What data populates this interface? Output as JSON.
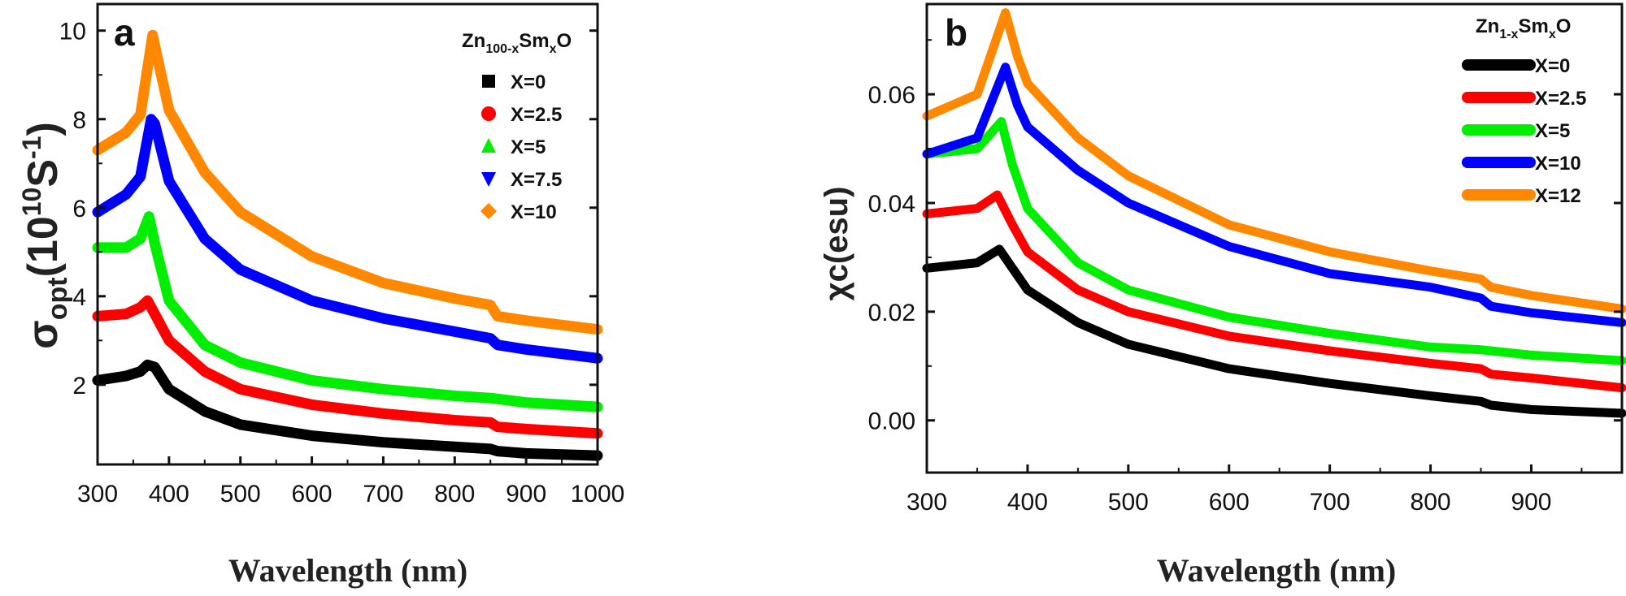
{
  "chart_data": [
    {
      "type": "line",
      "panel_label": "a",
      "xlabel": "Wavelength (nm)",
      "ylabel": {
        "base": "σ",
        "sub": "opt",
        "rest": "(10",
        "sup": "10",
        "unit": "S",
        "sup2": "-1",
        "close": ")"
      },
      "xlim": [
        300,
        1000
      ],
      "ylim": [
        0.2,
        10.6
      ],
      "xticks": [
        300,
        400,
        500,
        600,
        700,
        800,
        900,
        1000
      ],
      "yticks": [
        2,
        4,
        6,
        8,
        10
      ],
      "grid": false,
      "legend_position": "top-right",
      "legend_title": {
        "a": "Zn",
        "b": "100-x",
        "c": "Sm",
        "d": "x",
        "e": "O"
      },
      "series": [
        {
          "name": "X=0",
          "color": "#000000",
          "marker": "square",
          "x": [
            300,
            340,
            360,
            370,
            380,
            400,
            450,
            500,
            600,
            700,
            800,
            850,
            860,
            900,
            1000
          ],
          "y": [
            2.1,
            2.2,
            2.3,
            2.45,
            2.4,
            1.9,
            1.4,
            1.1,
            0.85,
            0.7,
            0.6,
            0.55,
            0.5,
            0.45,
            0.4
          ]
        },
        {
          "name": "X=2.5",
          "color": "#ff0000",
          "marker": "circle",
          "x": [
            300,
            340,
            360,
            370,
            380,
            400,
            450,
            500,
            600,
            700,
            800,
            850,
            860,
            900,
            1000
          ],
          "y": [
            3.55,
            3.6,
            3.75,
            3.9,
            3.6,
            3.0,
            2.3,
            1.9,
            1.55,
            1.35,
            1.2,
            1.15,
            1.05,
            1.0,
            0.9
          ]
        },
        {
          "name": "X=5",
          "color": "#00ee00",
          "marker": "triangle-up",
          "x": [
            300,
            340,
            360,
            372,
            380,
            400,
            450,
            500,
            600,
            700,
            800,
            850,
            900,
            1000
          ],
          "y": [
            5.1,
            5.1,
            5.3,
            5.8,
            5.2,
            3.9,
            2.9,
            2.5,
            2.1,
            1.9,
            1.75,
            1.7,
            1.6,
            1.5
          ]
        },
        {
          "name": "X=7.5",
          "color": "#0000ff",
          "marker": "triangle-down",
          "x": [
            300,
            340,
            360,
            375,
            380,
            400,
            450,
            500,
            600,
            700,
            800,
            850,
            860,
            900,
            1000
          ],
          "y": [
            5.9,
            6.3,
            6.7,
            8.0,
            7.9,
            6.6,
            5.3,
            4.6,
            3.9,
            3.5,
            3.2,
            3.05,
            2.9,
            2.8,
            2.6
          ]
        },
        {
          "name": "X=10",
          "color": "#ff8800",
          "marker": "diamond",
          "x": [
            300,
            340,
            360,
            377,
            385,
            400,
            450,
            500,
            600,
            700,
            800,
            850,
            860,
            900,
            1000
          ],
          "y": [
            7.3,
            7.7,
            8.1,
            9.9,
            9.3,
            8.2,
            6.8,
            5.9,
            4.9,
            4.3,
            3.95,
            3.8,
            3.55,
            3.45,
            3.25
          ]
        }
      ]
    },
    {
      "type": "line",
      "panel_label": "b",
      "xlabel": "Wavelength (nm)",
      "ylabel": {
        "text": "χc(esu)"
      },
      "xlim": [
        300,
        990
      ],
      "ylim": [
        -0.0096,
        0.0766
      ],
      "xticks": [
        300,
        400,
        500,
        600,
        700,
        800,
        900
      ],
      "yticks": [
        "0.00",
        "0.02",
        "0.04",
        "0.06"
      ],
      "grid": false,
      "legend_position": "top-right",
      "legend_title": {
        "a": "Zn",
        "b": "1-x",
        "c": "Sm",
        "d": "x",
        "e": "O"
      },
      "series": [
        {
          "name": "X=0",
          "color": "#000000",
          "x": [
            300,
            350,
            372,
            385,
            400,
            450,
            500,
            600,
            700,
            800,
            850,
            860,
            900,
            990
          ],
          "y": [
            0.028,
            0.029,
            0.0315,
            0.028,
            0.024,
            0.018,
            0.014,
            0.0095,
            0.0068,
            0.0045,
            0.0035,
            0.0028,
            0.002,
            0.0013
          ]
        },
        {
          "name": "X=2.5",
          "color": "#ff0000",
          "x": [
            300,
            350,
            370,
            385,
            400,
            450,
            500,
            600,
            700,
            800,
            850,
            860,
            900,
            990
          ],
          "y": [
            0.038,
            0.039,
            0.0415,
            0.036,
            0.031,
            0.024,
            0.02,
            0.0155,
            0.0128,
            0.0105,
            0.0095,
            0.0085,
            0.0078,
            0.006
          ]
        },
        {
          "name": "X=5",
          "color": "#00ee00",
          "x": [
            300,
            350,
            374,
            385,
            400,
            450,
            500,
            600,
            700,
            800,
            850,
            900,
            990
          ],
          "y": [
            0.049,
            0.05,
            0.055,
            0.047,
            0.039,
            0.029,
            0.024,
            0.019,
            0.016,
            0.0135,
            0.013,
            0.012,
            0.011
          ]
        },
        {
          "name": "X=10",
          "color": "#0000ff",
          "x": [
            300,
            350,
            378,
            390,
            400,
            450,
            500,
            600,
            700,
            800,
            850,
            860,
            900,
            990
          ],
          "y": [
            0.049,
            0.052,
            0.065,
            0.058,
            0.054,
            0.046,
            0.04,
            0.032,
            0.027,
            0.0245,
            0.0225,
            0.021,
            0.0198,
            0.018
          ]
        },
        {
          "name": "X=12",
          "color": "#ff8800",
          "x": [
            300,
            350,
            378,
            390,
            400,
            450,
            500,
            600,
            700,
            800,
            850,
            860,
            900,
            990
          ],
          "y": [
            0.056,
            0.06,
            0.075,
            0.067,
            0.062,
            0.052,
            0.045,
            0.036,
            0.031,
            0.0275,
            0.026,
            0.0245,
            0.023,
            0.0205
          ]
        }
      ]
    }
  ]
}
